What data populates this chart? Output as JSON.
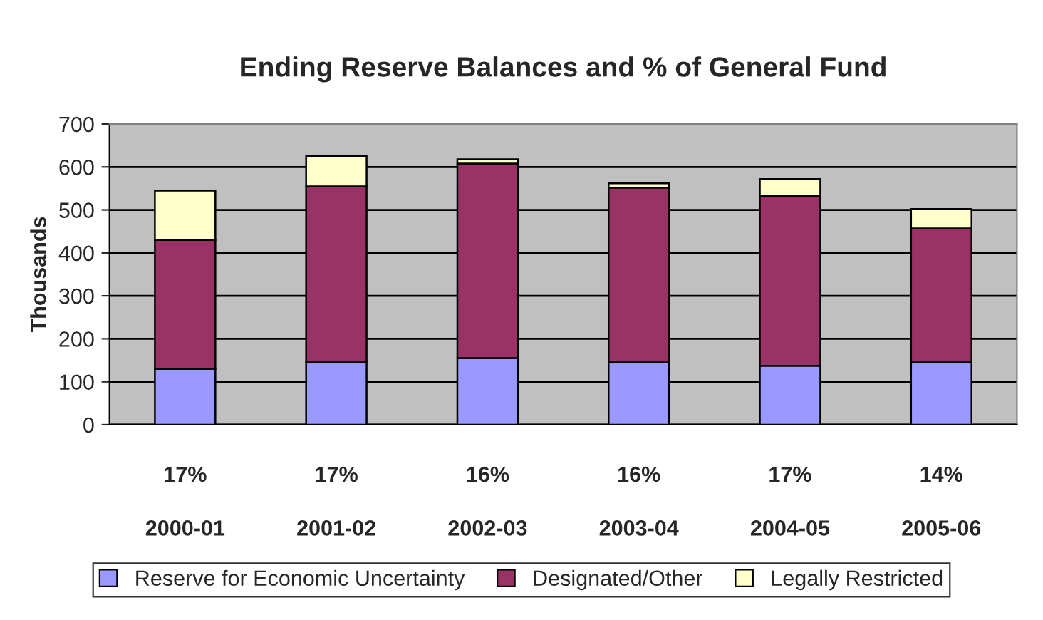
{
  "chart_data": {
    "type": "bar",
    "title": "Ending Reserve Balances and % of General Fund",
    "ylabel": "Thousands",
    "categories": [
      "2000-01",
      "2001-02",
      "2002-03",
      "2003-04",
      "2004-05",
      "2005-06"
    ],
    "stacked": true,
    "series": [
      {
        "name": "Reserve for Economic Uncertainty",
        "color": "#9999ff",
        "values": [
          130,
          145,
          155,
          145,
          137,
          145
        ]
      },
      {
        "name": "Designated/Other",
        "color": "#993366",
        "values": [
          300,
          410,
          453,
          407,
          395,
          312
        ]
      },
      {
        "name": "Legally Restricted",
        "color": "#ffffcc",
        "values": [
          115,
          70,
          10,
          10,
          40,
          45
        ]
      }
    ],
    "annotations": [
      "17%",
      "17%",
      "16%",
      "16%",
      "17%",
      "14%"
    ],
    "ylim": [
      0,
      700
    ],
    "yticks": [
      0,
      100,
      200,
      300,
      400,
      500,
      600,
      700
    ],
    "grid": "y",
    "legend": "bottom"
  }
}
